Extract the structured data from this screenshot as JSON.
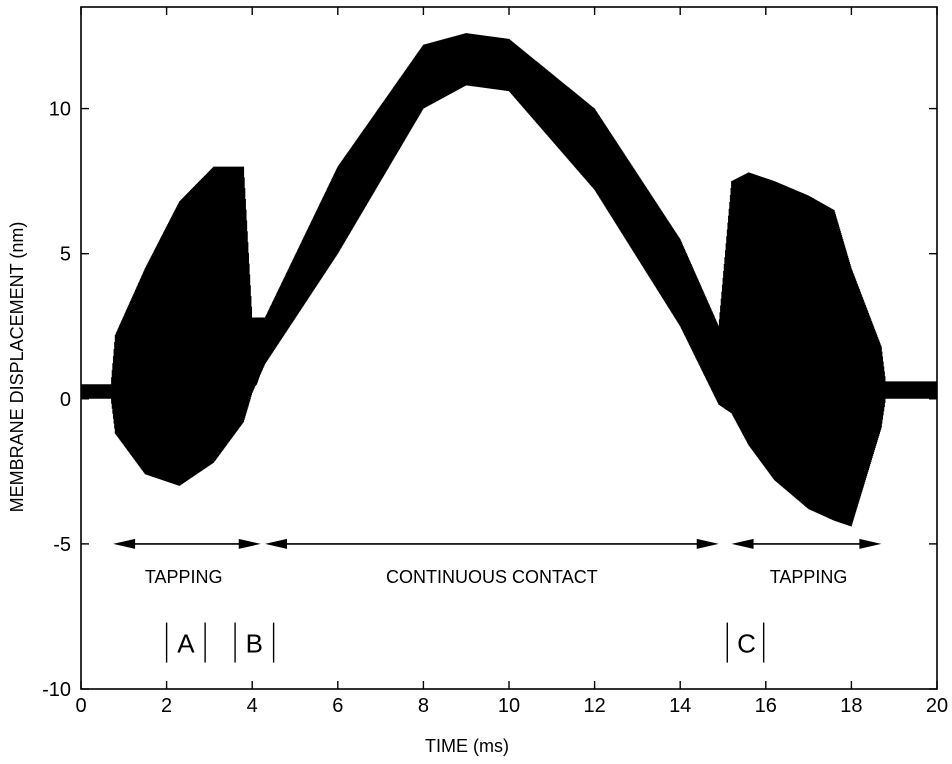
{
  "chart_data": {
    "type": "line",
    "title": "",
    "xlabel": "TIME (ms)",
    "ylabel": "MEMBRANE DISPLACEMENT (nm)",
    "xlim": [
      0,
      20
    ],
    "ylim": [
      -10,
      13.5
    ],
    "grid": false,
    "x_ticks": [
      0,
      2,
      4,
      6,
      8,
      10,
      12,
      14,
      16,
      18,
      20
    ],
    "x_tick_labels": [
      "0",
      "2",
      "4",
      "6",
      "8",
      "10",
      "12",
      "14",
      "16",
      "18",
      "20"
    ],
    "y_ticks": [
      -10,
      -5,
      0,
      5,
      10
    ],
    "y_tick_labels": [
      "-10",
      "-5",
      "0",
      "5",
      "10"
    ],
    "series": [
      {
        "style": "oscillating trace",
        "color": "#000000",
        "baseline": {
          "x": [
            0,
            0.75,
            4.0,
            4.3,
            6,
            8,
            9,
            10,
            12,
            14,
            14.9,
            15.2,
            18.6,
            20
          ],
          "y": [
            0.2,
            0.3,
            0.6,
            2.0,
            6.5,
            11,
            11.8,
            11.5,
            8.5,
            4,
            1.0,
            0.3,
            0.2,
            0.2
          ]
        },
        "envelope_upper": {
          "x": [
            0,
            0.7,
            0.8,
            1.5,
            2.3,
            3.1,
            3.8,
            4.0,
            4.3,
            6,
            8,
            9,
            10,
            12,
            14,
            14.9,
            15.2,
            15.6,
            16.2,
            17.0,
            17.6,
            18.0,
            18.7,
            18.8,
            20
          ],
          "y": [
            0.5,
            0.5,
            2.2,
            4.5,
            6.8,
            8.0,
            8.0,
            2.8,
            2.8,
            8.0,
            12.2,
            12.6,
            12.4,
            10.0,
            5.5,
            2.5,
            7.5,
            7.8,
            7.5,
            7.0,
            6.5,
            4.5,
            1.8,
            0.6,
            0.6
          ]
        },
        "envelope_lower": {
          "x": [
            0,
            0.7,
            0.8,
            1.5,
            2.3,
            3.1,
            3.8,
            4.0,
            4.3,
            6,
            8,
            9,
            10,
            12,
            14,
            14.9,
            15.2,
            15.6,
            16.2,
            17.0,
            17.6,
            18.0,
            18.7,
            18.8,
            20
          ],
          "y": [
            0.0,
            0.0,
            -1.2,
            -2.6,
            -3.0,
            -2.2,
            -0.8,
            0.2,
            1.2,
            5.0,
            10.0,
            10.8,
            10.6,
            7.2,
            2.5,
            -0.2,
            -0.5,
            -1.6,
            -2.8,
            -3.8,
            -4.2,
            -4.4,
            -1.0,
            0.0,
            0.0
          ]
        }
      }
    ],
    "annotations": [
      {
        "type": "double-arrow",
        "x_start": 0.75,
        "x_end": 4.2,
        "y": -5,
        "label": "TAPPING",
        "label_x": 2.4,
        "label_y": -6.1
      },
      {
        "type": "double-arrow",
        "x_start": 4.3,
        "x_end": 14.9,
        "y": -5,
        "label": "CONTINUOUS CONTACT",
        "label_x": 9.6,
        "label_y": -6.1
      },
      {
        "type": "double-arrow",
        "x_start": 15.2,
        "x_end": 18.7,
        "y": -5,
        "label": "TAPPING",
        "label_x": 17.0,
        "label_y": -6.1
      },
      {
        "type": "marker",
        "label": "A",
        "x": 2.45,
        "y": -8.4,
        "bar_x": [
          2.0,
          2.9
        ]
      },
      {
        "type": "marker",
        "label": "B",
        "x": 4.05,
        "y": -8.4,
        "bar_x": [
          3.6,
          4.5
        ]
      },
      {
        "type": "marker",
        "label": "C",
        "x": 15.55,
        "y": -8.4,
        "bar_x": [
          15.1,
          15.95
        ]
      }
    ]
  }
}
